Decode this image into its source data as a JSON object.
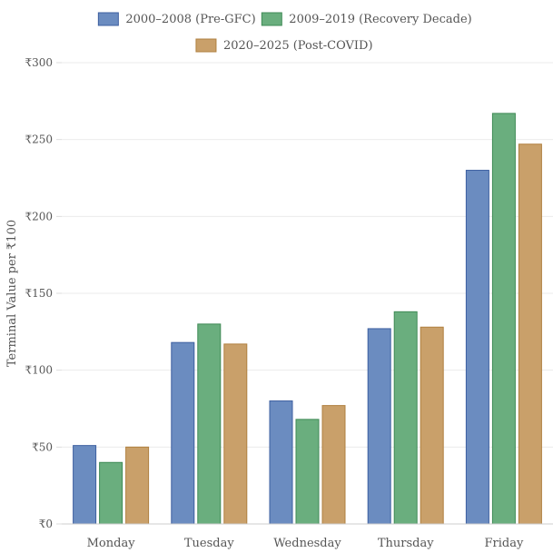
{
  "chart_data": {
    "type": "bar",
    "title": "",
    "xlabel": "",
    "ylabel": "Terminal Value per ₹100",
    "ylim": [
      0,
      300
    ],
    "yticks": [
      0,
      50,
      100,
      150,
      200,
      250,
      300
    ],
    "ytick_labels": [
      "₹0",
      "₹50",
      "₹100",
      "₹150",
      "₹200",
      "₹250",
      "₹300"
    ],
    "categories": [
      "Monday",
      "Tuesday",
      "Wednesday",
      "Thursday",
      "Friday"
    ],
    "series": [
      {
        "name": "2000–2008 (Pre-GFC)",
        "color": "#6b8cc0",
        "border": "#3d5fa0",
        "values": [
          51,
          118,
          80,
          127,
          230
        ]
      },
      {
        "name": "2009–2019 (Recovery Decade)",
        "color": "#6aae7e",
        "border": "#3f8a55",
        "values": [
          40,
          130,
          68,
          138,
          267
        ]
      },
      {
        "name": "2020–2025 (Post-COVID)",
        "color": "#c9a06a",
        "border": "#b08040",
        "values": [
          50,
          117,
          77,
          128,
          247
        ]
      }
    ],
    "legend_position": "top",
    "grid": true
  }
}
